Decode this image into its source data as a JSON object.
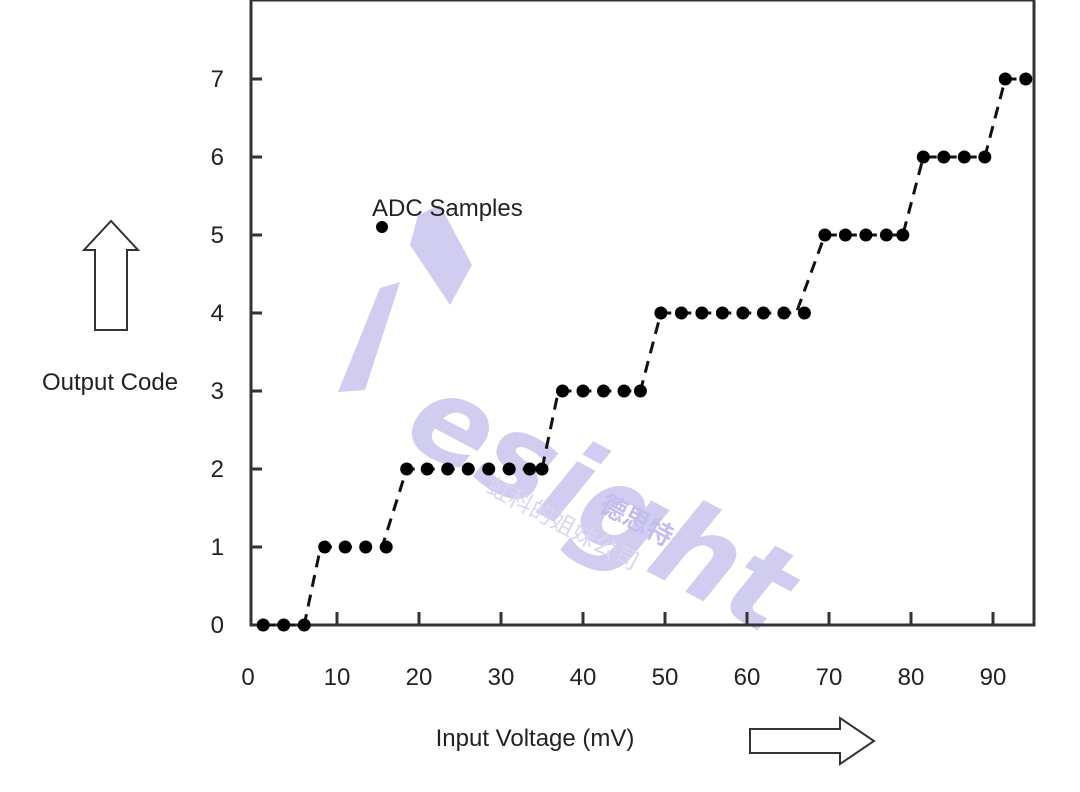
{
  "chart_data": {
    "type": "scatter",
    "xlabel": "Input Voltage (mV)",
    "ylabel": "Output Code",
    "xlim": [
      0,
      95
    ],
    "ylim": [
      0,
      7.8
    ],
    "x_ticks": [
      0,
      10,
      20,
      30,
      40,
      50,
      60,
      70,
      80,
      90
    ],
    "y_ticks": [
      0,
      1,
      2,
      3,
      4,
      5,
      6,
      7
    ],
    "legend": {
      "label": "ADC Samples",
      "placement": "top-left"
    },
    "grid": false,
    "series": [
      {
        "name": "ADC Samples",
        "marker": "dot",
        "points": [
          [
            1,
            0
          ],
          [
            3.5,
            0
          ],
          [
            6,
            0
          ],
          [
            8.5,
            1
          ],
          [
            11,
            1
          ],
          [
            13.5,
            1
          ],
          [
            16,
            1
          ],
          [
            18.5,
            2
          ],
          [
            21,
            2
          ],
          [
            23.5,
            2
          ],
          [
            26,
            2
          ],
          [
            28.5,
            2
          ],
          [
            31,
            2
          ],
          [
            33.5,
            2
          ],
          [
            35,
            2
          ],
          [
            37.5,
            3
          ],
          [
            40,
            3
          ],
          [
            42.5,
            3
          ],
          [
            45,
            3
          ],
          [
            47,
            3
          ],
          [
            49.5,
            4
          ],
          [
            52,
            4
          ],
          [
            54.5,
            4
          ],
          [
            57,
            4
          ],
          [
            59.5,
            4
          ],
          [
            62,
            4
          ],
          [
            64.5,
            4
          ],
          [
            67,
            4
          ],
          [
            69.5,
            5
          ],
          [
            72,
            5
          ],
          [
            74.5,
            5
          ],
          [
            77,
            5
          ],
          [
            79,
            5
          ],
          [
            81.5,
            6
          ],
          [
            84,
            6
          ],
          [
            86.5,
            6
          ],
          [
            89,
            6
          ],
          [
            91.5,
            7
          ],
          [
            94,
            7
          ]
        ]
      },
      {
        "name": "",
        "style": "dashed-staircase",
        "points": [
          [
            1,
            0
          ],
          [
            6,
            0
          ],
          [
            8,
            1
          ],
          [
            15.5,
            1
          ],
          [
            18.5,
            2
          ],
          [
            35,
            2
          ],
          [
            37,
            3
          ],
          [
            47,
            3
          ],
          [
            49.5,
            4
          ],
          [
            66,
            4
          ],
          [
            69.5,
            5
          ],
          [
            79,
            5
          ],
          [
            81.5,
            6
          ],
          [
            89,
            6
          ],
          [
            91.5,
            7
          ],
          [
            93.5,
            7
          ]
        ]
      }
    ]
  },
  "watermark": {
    "brand": "esight",
    "cn_brand": "德思特",
    "tagline": "虹科的姐妹公司",
    "color": "#c8c4ee"
  },
  "icons": {
    "up_arrow": "up-arrow-icon",
    "right_arrow": "right-arrow-icon"
  }
}
